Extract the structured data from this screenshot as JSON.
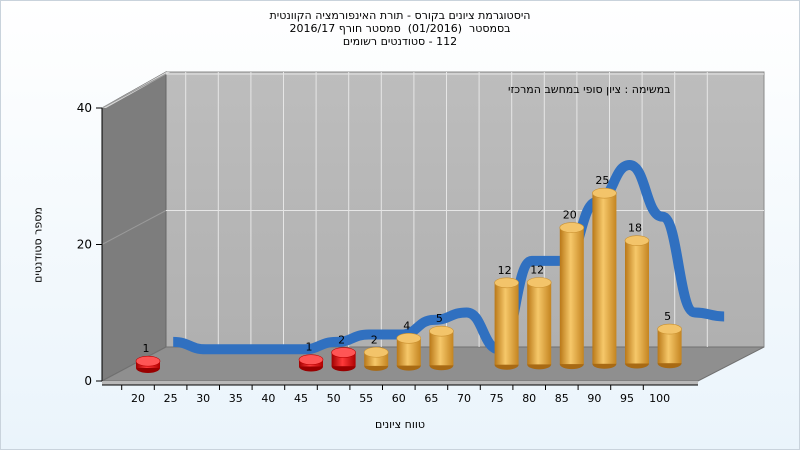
{
  "chart_data": {
    "type": "bar",
    "title_lines": [
      "היסטוגרמת ציונים בקורס - תורת האינפורמציה הקוונטית",
      "בסמסטר  (01/2016)  סמסטר חורף 2016/17",
      "112 - סטודנטים רשומים"
    ],
    "annotation": "במשימה : ציון סופי במחשב המרכזי",
    "xlabel": "טווח ציונים",
    "ylabel": "מספר סטודנטים",
    "categories": [
      "20",
      "25",
      "30",
      "35",
      "40",
      "45",
      "50",
      "55",
      "60",
      "65",
      "70",
      "75",
      "80",
      "85",
      "90",
      "95",
      "100"
    ],
    "values": [
      1,
      0,
      0,
      0,
      0,
      1,
      2,
      2,
      4,
      5,
      0,
      12,
      12,
      20,
      25,
      18,
      5
    ],
    "bar_colors": [
      "#d11212",
      "",
      "",
      "",
      "",
      "#d11212",
      "#d11212",
      "#e3a43e",
      "#e3a43e",
      "#e3a43e",
      "",
      "#e3a43e",
      "#e3a43e",
      "#e3a43e",
      "#e3a43e",
      "#e3a43e",
      "#e3a43e"
    ],
    "y_ticks": [
      "0",
      "20",
      "40"
    ],
    "ylim": [
      0,
      40
    ],
    "grid": true,
    "trend_line_color": "#3070c0"
  }
}
